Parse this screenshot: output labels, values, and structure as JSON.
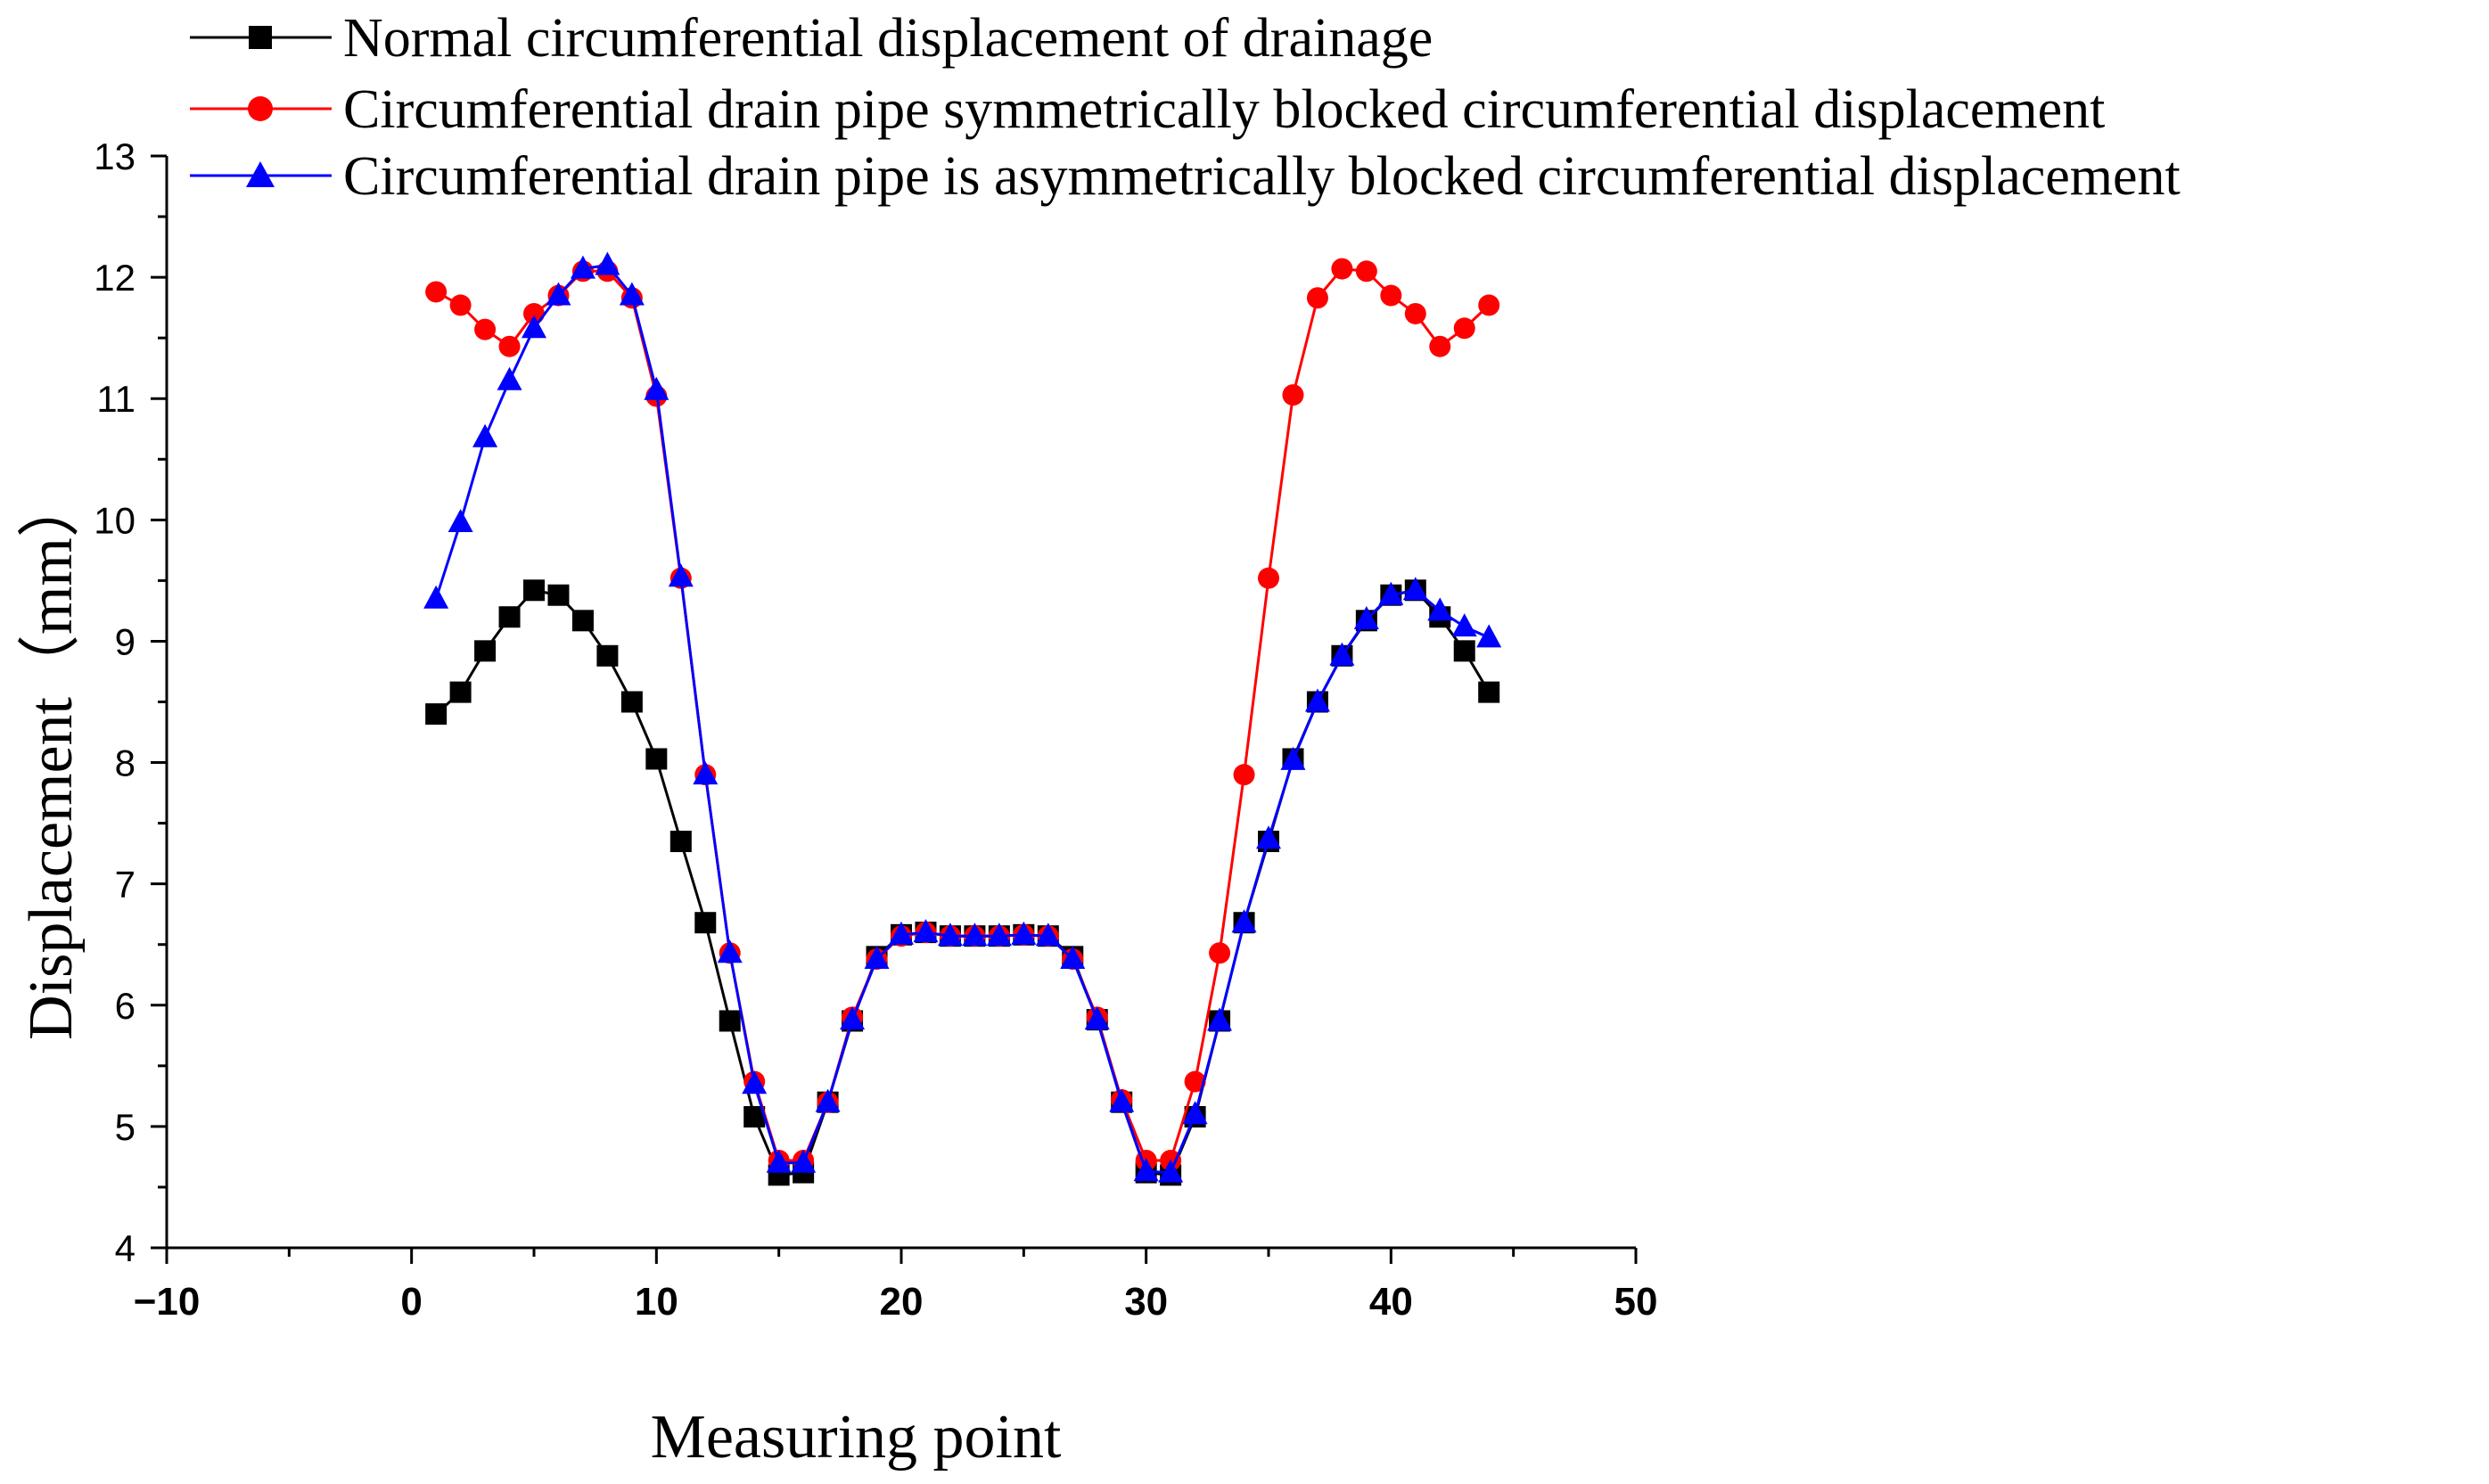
{
  "chart_data": {
    "type": "line",
    "title": "",
    "xlabel": "Measuring point",
    "ylabel": "Displacement（mm）",
    "xlim": [
      -10,
      50
    ],
    "ylim": [
      4,
      13
    ],
    "x_ticks": [
      -10,
      0,
      10,
      20,
      30,
      40,
      50
    ],
    "x_tick_labels": [
      "−10",
      "0",
      "10",
      "20",
      "30",
      "40",
      "50"
    ],
    "y_ticks": [
      4,
      5,
      6,
      7,
      8,
      9,
      10,
      11,
      12,
      13
    ],
    "y_tick_labels": [
      "4",
      "5",
      "6",
      "7",
      "8",
      "9",
      "10",
      "11",
      "12",
      "13"
    ],
    "grid": false,
    "legend_position": "top",
    "series": [
      {
        "name": "Normal circumferential displacement of drainage",
        "color": "#000000",
        "marker": "square",
        "x": [
          1,
          2,
          3,
          4,
          5,
          6,
          7,
          8,
          9,
          10,
          11,
          12,
          13,
          14,
          15,
          16,
          17,
          18,
          19,
          20,
          21,
          22,
          23,
          24,
          25,
          26,
          27,
          28,
          29,
          30,
          31,
          32,
          33,
          34,
          35,
          36,
          37,
          38,
          39,
          40,
          41,
          42,
          43,
          44
        ],
        "values": [
          8.4,
          8.58,
          8.92,
          9.2,
          9.42,
          9.38,
          9.17,
          8.88,
          8.5,
          8.03,
          7.35,
          6.68,
          5.87,
          5.08,
          4.6,
          4.62,
          5.2,
          5.87,
          6.4,
          6.58,
          6.6,
          6.57,
          6.57,
          6.57,
          6.58,
          6.57,
          6.4,
          5.88,
          5.2,
          4.62,
          4.6,
          5.08,
          5.87,
          6.68,
          7.35,
          8.03,
          8.5,
          8.88,
          9.17,
          9.38,
          9.42,
          9.2,
          8.92,
          8.58
        ]
      },
      {
        "name": "Circumferential drain pipe symmetrically blocked circumferential displacement",
        "color": "#ff0000",
        "marker": "circle",
        "x": [
          1,
          2,
          3,
          4,
          5,
          6,
          7,
          8,
          9,
          10,
          11,
          12,
          13,
          14,
          15,
          16,
          17,
          18,
          19,
          20,
          21,
          22,
          23,
          24,
          25,
          26,
          27,
          28,
          29,
          30,
          31,
          32,
          33,
          34,
          35,
          36,
          37,
          38,
          39,
          40,
          41,
          42,
          43,
          44
        ],
        "values": [
          11.88,
          11.77,
          11.57,
          11.43,
          11.7,
          11.85,
          12.05,
          12.05,
          11.83,
          11.02,
          9.52,
          7.9,
          6.43,
          5.37,
          4.72,
          4.72,
          5.2,
          5.9,
          6.38,
          6.57,
          6.6,
          6.57,
          6.57,
          6.57,
          6.58,
          6.57,
          6.38,
          5.9,
          5.22,
          4.72,
          4.72,
          5.37,
          6.43,
          7.9,
          9.52,
          11.03,
          11.83,
          12.07,
          12.05,
          11.85,
          11.7,
          11.43,
          11.58,
          11.77
        ]
      },
      {
        "name": "Circumferential drain pipe is asymmetrically blocked circumferential displacement",
        "color": "#0000ff",
        "marker": "triangle",
        "x": [
          1,
          2,
          3,
          4,
          5,
          6,
          7,
          8,
          9,
          10,
          11,
          12,
          13,
          14,
          15,
          16,
          17,
          18,
          19,
          20,
          21,
          22,
          23,
          24,
          25,
          26,
          27,
          28,
          29,
          30,
          31,
          32,
          33,
          34,
          35,
          36,
          37,
          38,
          39,
          40,
          41,
          42,
          43,
          44
        ],
        "values": [
          9.35,
          9.98,
          10.68,
          11.15,
          11.58,
          11.85,
          12.07,
          12.1,
          11.85,
          11.07,
          9.53,
          7.9,
          6.43,
          5.35,
          4.7,
          4.7,
          5.2,
          5.88,
          6.38,
          6.58,
          6.6,
          6.57,
          6.57,
          6.57,
          6.58,
          6.57,
          6.38,
          5.88,
          5.2,
          4.63,
          4.62,
          5.1,
          5.87,
          6.68,
          7.37,
          8.02,
          8.5,
          8.88,
          9.18,
          9.38,
          9.42,
          9.25,
          9.12,
          9.03
        ]
      }
    ]
  }
}
